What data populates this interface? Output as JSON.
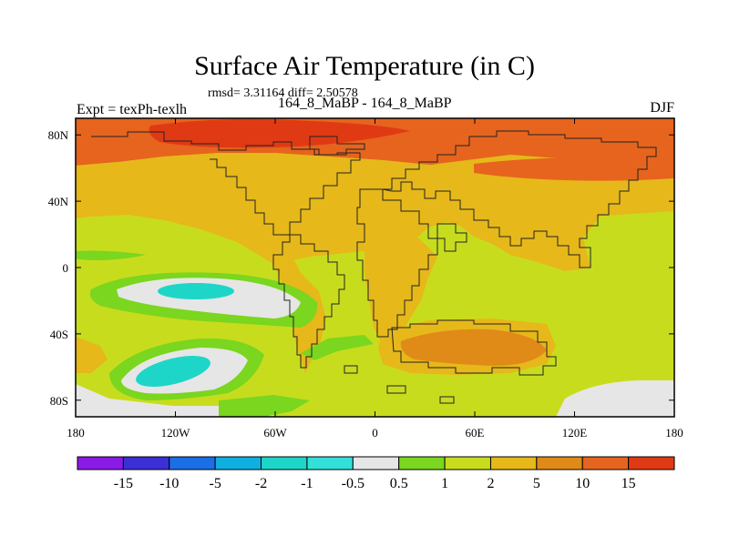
{
  "header": {
    "title": "Surface Air Temperature (in C)",
    "stats": "rmsd= 3.31164 diff= 2.50578",
    "expt": "Expt = texPh-texlh",
    "experiment_diff": "164_8_MaBP - 164_8_MaBP",
    "season": "DJF"
  },
  "axes": {
    "lat_ticks": [
      {
        "label": "80N",
        "lat": 80
      },
      {
        "label": "40N",
        "lat": 40
      },
      {
        "label": "0",
        "lat": 0
      },
      {
        "label": "40S",
        "lat": -40
      },
      {
        "label": "80S",
        "lat": -80
      }
    ],
    "lon_ticks": [
      {
        "label": "180",
        "lon": -180
      },
      {
        "label": "120W",
        "lon": -120
      },
      {
        "label": "60W",
        "lon": -60
      },
      {
        "label": "0",
        "lon": 0
      },
      {
        "label": "60E",
        "lon": 60
      },
      {
        "label": "120E",
        "lon": 120
      },
      {
        "label": "180",
        "lon": 180
      }
    ]
  },
  "colorbar": {
    "colors": [
      "#8a1ae6",
      "#3b2fd6",
      "#1a6ee6",
      "#0fb0e0",
      "#1ed6c8",
      "#33e0d8",
      "#e6e6e6",
      "#7ad61e",
      "#c8dc1e",
      "#e6b81a",
      "#e08a18",
      "#e6641e",
      "#e03a14"
    ],
    "labels": [
      "-15",
      "-10",
      "-5",
      "-2",
      "-1",
      "-0.5",
      "0.5",
      "1",
      "2",
      "5",
      "10",
      "15"
    ]
  },
  "colors": {
    "white": "#e6e6e6",
    "cyan": "#1ed6c8",
    "green": "#7ad61e",
    "yellowgreen": "#c8dc1e",
    "orange": "#e6b81a",
    "darkorange": "#e08a18",
    "redorange": "#e6641e",
    "red": "#e03a14"
  }
}
